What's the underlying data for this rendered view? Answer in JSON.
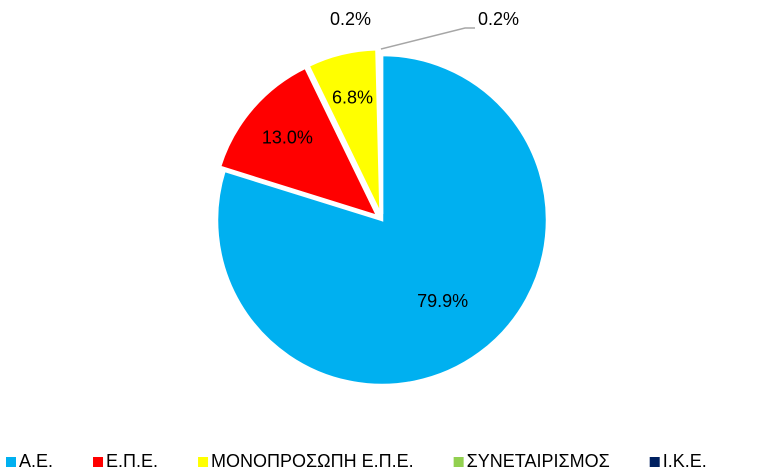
{
  "chart_data": {
    "type": "pie",
    "categories": [
      "Α.Ε.",
      "Ε.Π.Ε.",
      "ΜΟΝΟΠΡΟΣΩΠΗ Ε.Π.Ε.",
      "ΣΥΝΕΤΑΙΡΙΣΜΟΣ",
      "Ι.Κ.Ε."
    ],
    "values": [
      79.9,
      13.0,
      6.8,
      0.2,
      0.2
    ],
    "value_labels": [
      "79.9%",
      "13.0%",
      "6.8%",
      "0.2%",
      "0.2%"
    ],
    "colors": [
      "#00b0f0",
      "#ff0000",
      "#ffff00",
      "#92d050",
      "#002060"
    ],
    "legend": "bottom"
  }
}
